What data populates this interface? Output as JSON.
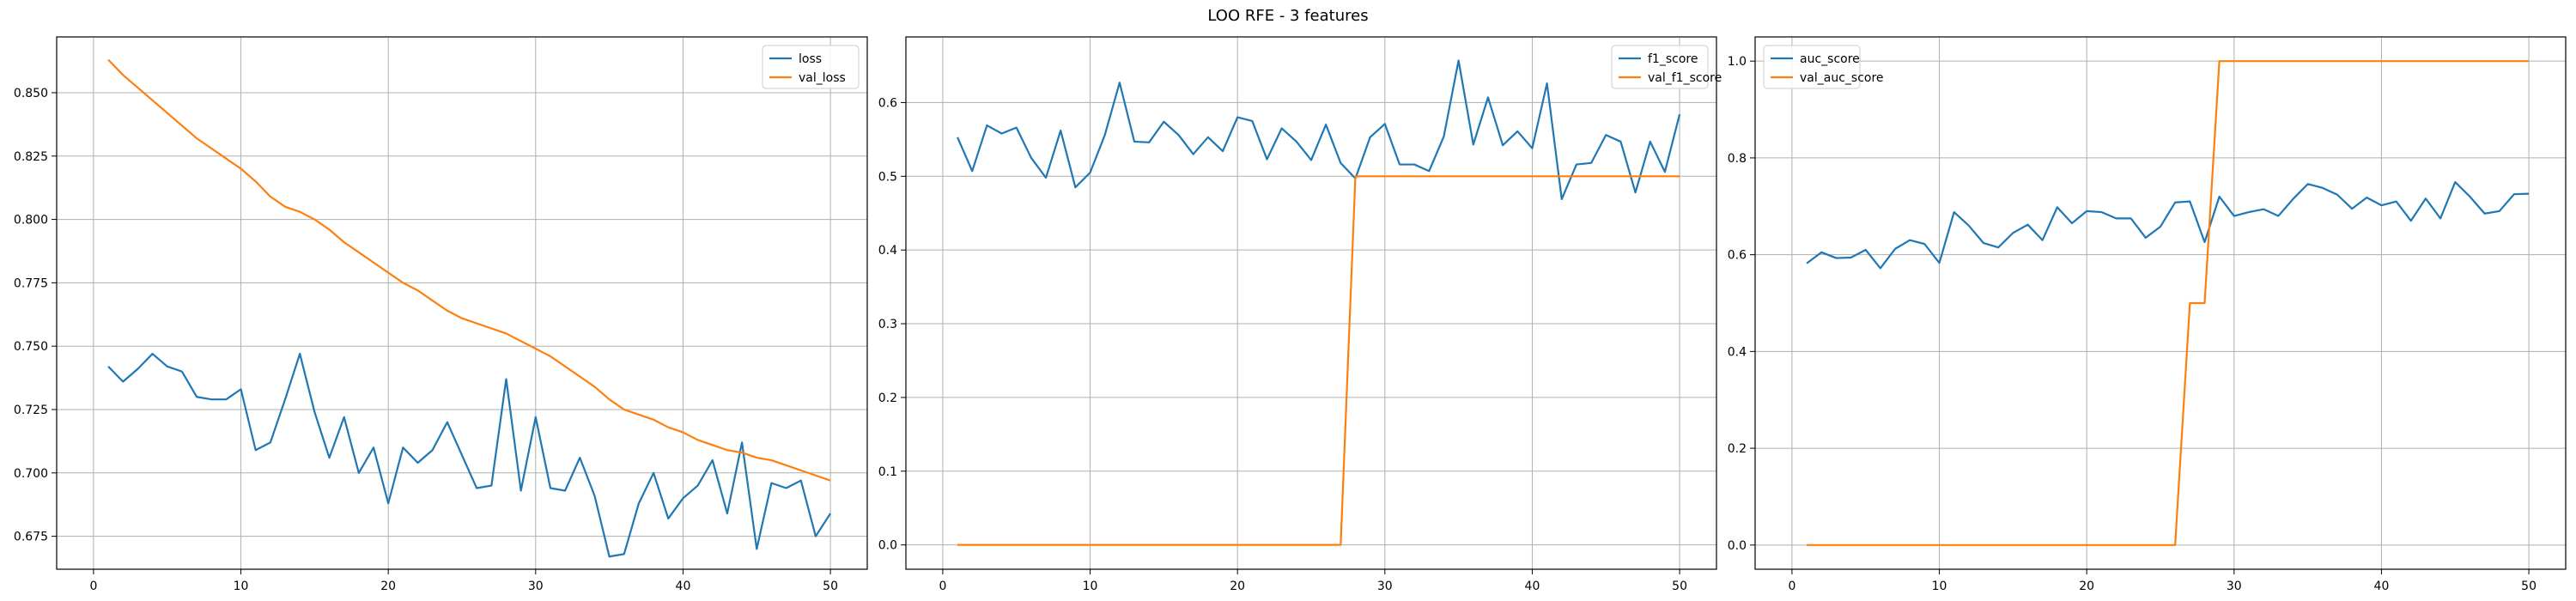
{
  "figure": {
    "title": "LOO RFE - 3 features"
  },
  "colors": {
    "series_a": "#1f77b4",
    "series_b": "#ff7f0e",
    "grid": "#b0b0b0"
  },
  "chart_data": [
    {
      "type": "line",
      "xlim": [
        -2.5,
        52.5
      ],
      "ylim": [
        0.662,
        0.872
      ],
      "xticks": [
        0,
        10,
        20,
        30,
        40,
        50
      ],
      "xtick_labels": [
        "0",
        "10",
        "20",
        "30",
        "40",
        "50"
      ],
      "yticks": [
        0.675,
        0.7,
        0.725,
        0.75,
        0.775,
        0.8,
        0.825,
        0.85
      ],
      "ytick_labels": [
        "0.675",
        "0.700",
        "0.725",
        "0.750",
        "0.775",
        "0.800",
        "0.825",
        "0.850"
      ],
      "grid": true,
      "legend": "top-right",
      "x": [
        1,
        2,
        3,
        4,
        5,
        6,
        7,
        8,
        9,
        10,
        11,
        12,
        13,
        14,
        15,
        16,
        17,
        18,
        19,
        20,
        21,
        22,
        23,
        24,
        25,
        26,
        27,
        28,
        29,
        30,
        31,
        32,
        33,
        34,
        35,
        36,
        37,
        38,
        39,
        40,
        41,
        42,
        43,
        44,
        45,
        46,
        47,
        48,
        49,
        50
      ],
      "series": [
        {
          "name": "loss",
          "values": [
            0.742,
            0.736,
            0.741,
            0.747,
            0.742,
            0.74,
            0.73,
            0.729,
            0.729,
            0.733,
            0.709,
            0.712,
            0.729,
            0.747,
            0.724,
            0.706,
            0.722,
            0.7,
            0.71,
            0.688,
            0.71,
            0.704,
            0.709,
            0.72,
            0.707,
            0.694,
            0.695,
            0.737,
            0.693,
            0.722,
            0.694,
            0.693,
            0.706,
            0.691,
            0.667,
            0.668,
            0.688,
            0.7,
            0.682,
            0.69,
            0.695,
            0.705,
            0.684,
            0.712,
            0.67,
            0.696,
            0.694,
            0.697,
            0.675,
            0.684
          ]
        },
        {
          "name": "val_loss",
          "values": [
            0.863,
            0.857,
            0.852,
            0.847,
            0.842,
            0.837,
            0.832,
            0.828,
            0.824,
            0.82,
            0.815,
            0.809,
            0.805,
            0.803,
            0.8,
            0.796,
            0.791,
            0.787,
            0.783,
            0.779,
            0.775,
            0.772,
            0.768,
            0.764,
            0.761,
            0.759,
            0.757,
            0.755,
            0.752,
            0.749,
            0.746,
            0.742,
            0.738,
            0.734,
            0.729,
            0.725,
            0.723,
            0.721,
            0.718,
            0.716,
            0.713,
            0.711,
            0.709,
            0.708,
            0.706,
            0.705,
            0.703,
            0.701,
            0.699,
            0.697
          ]
        }
      ]
    },
    {
      "type": "line",
      "xlim": [
        -2.5,
        52.5
      ],
      "ylim": [
        -0.033,
        0.689
      ],
      "xticks": [
        0,
        10,
        20,
        30,
        40,
        50
      ],
      "xtick_labels": [
        "0",
        "10",
        "20",
        "30",
        "40",
        "50"
      ],
      "yticks": [
        0,
        0.1,
        0.2,
        0.3,
        0.4,
        0.5,
        0.6
      ],
      "ytick_labels": [
        "0.0",
        "0.1",
        "0.2",
        "0.3",
        "0.4",
        "0.5",
        "0.6"
      ],
      "grid": true,
      "legend": "top-right",
      "x": [
        1,
        2,
        3,
        4,
        5,
        6,
        7,
        8,
        9,
        10,
        11,
        12,
        13,
        14,
        15,
        16,
        17,
        18,
        19,
        20,
        21,
        22,
        23,
        24,
        25,
        26,
        27,
        28,
        29,
        30,
        31,
        32,
        33,
        34,
        35,
        36,
        37,
        38,
        39,
        40,
        41,
        42,
        43,
        44,
        45,
        46,
        47,
        48,
        49,
        50
      ],
      "series": [
        {
          "name": "f1_score",
          "values": [
            0.553,
            0.507,
            0.569,
            0.558,
            0.566,
            0.525,
            0.498,
            0.562,
            0.485,
            0.505,
            0.556,
            0.627,
            0.547,
            0.546,
            0.574,
            0.556,
            0.53,
            0.553,
            0.534,
            0.58,
            0.575,
            0.523,
            0.565,
            0.547,
            0.522,
            0.57,
            0.518,
            0.497,
            0.553,
            0.571,
            0.516,
            0.516,
            0.507,
            0.554,
            0.657,
            0.543,
            0.607,
            0.542,
            0.561,
            0.538,
            0.626,
            0.469,
            0.516,
            0.518,
            0.556,
            0.547,
            0.478,
            0.547,
            0.506,
            0.584
          ]
        },
        {
          "name": "val_f1_score",
          "values": [
            0,
            0,
            0,
            0,
            0,
            0,
            0,
            0,
            0,
            0,
            0,
            0,
            0,
            0,
            0,
            0,
            0,
            0,
            0,
            0,
            0,
            0,
            0,
            0,
            0,
            0,
            0,
            0.5,
            0.5,
            0.5,
            0.5,
            0.5,
            0.5,
            0.5,
            0.5,
            0.5,
            0.5,
            0.5,
            0.5,
            0.5,
            0.5,
            0.5,
            0.5,
            0.5,
            0.5,
            0.5,
            0.5,
            0.5,
            0.5,
            0.5
          ]
        }
      ]
    },
    {
      "type": "line",
      "xlim": [
        -2.5,
        52.5
      ],
      "ylim": [
        -0.05,
        1.05
      ],
      "xticks": [
        0,
        10,
        20,
        30,
        40,
        50
      ],
      "xtick_labels": [
        "0",
        "10",
        "20",
        "30",
        "40",
        "50"
      ],
      "yticks": [
        0,
        0.2,
        0.4,
        0.6,
        0.8,
        1.0
      ],
      "ytick_labels": [
        "0.0",
        "0.2",
        "0.4",
        "0.6",
        "0.8",
        "1.0"
      ],
      "grid": true,
      "legend": "top-left",
      "x": [
        1,
        2,
        3,
        4,
        5,
        6,
        7,
        8,
        9,
        10,
        11,
        12,
        13,
        14,
        15,
        16,
        17,
        18,
        19,
        20,
        21,
        22,
        23,
        24,
        25,
        26,
        27,
        28,
        29,
        30,
        31,
        32,
        33,
        34,
        35,
        36,
        37,
        38,
        39,
        40,
        41,
        42,
        43,
        44,
        45,
        46,
        47,
        48,
        49,
        50
      ],
      "series": [
        {
          "name": "auc_score",
          "values": [
            0.582,
            0.605,
            0.593,
            0.594,
            0.61,
            0.572,
            0.612,
            0.63,
            0.622,
            0.583,
            0.688,
            0.66,
            0.624,
            0.615,
            0.645,
            0.662,
            0.63,
            0.698,
            0.665,
            0.69,
            0.688,
            0.675,
            0.675,
            0.635,
            0.658,
            0.708,
            0.71,
            0.626,
            0.72,
            0.68,
            0.688,
            0.694,
            0.68,
            0.715,
            0.746,
            0.738,
            0.724,
            0.695,
            0.718,
            0.702,
            0.71,
            0.67,
            0.716,
            0.675,
            0.75,
            0.72,
            0.685,
            0.69,
            0.725,
            0.726
          ]
        },
        {
          "name": "val_auc_score",
          "values": [
            0,
            0,
            0,
            0,
            0,
            0,
            0,
            0,
            0,
            0,
            0,
            0,
            0,
            0,
            0,
            0,
            0,
            0,
            0,
            0,
            0,
            0,
            0,
            0,
            0,
            0,
            0.5,
            0.5,
            1,
            1,
            1,
            1,
            1,
            1,
            1,
            1,
            1,
            1,
            1,
            1,
            1,
            1,
            1,
            1,
            1,
            1,
            1,
            1,
            1,
            1
          ]
        }
      ]
    }
  ]
}
